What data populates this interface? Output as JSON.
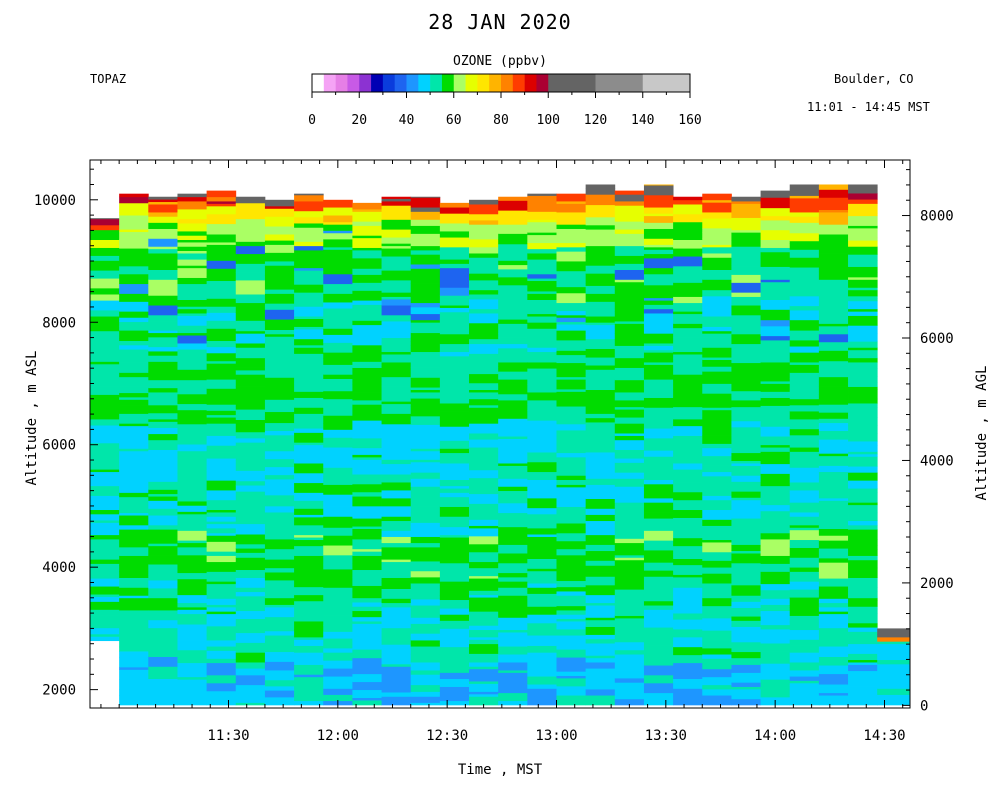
{
  "header": {
    "title": "28 JAN 2020",
    "station": "TOPAZ",
    "location": "Boulder, CO",
    "time_range": "11:01 - 14:45 MST"
  },
  "colorbar": {
    "title": "OZONE (ppbv)",
    "ticks": [
      0,
      20,
      40,
      60,
      80,
      100,
      120,
      140,
      160
    ],
    "bins": [
      {
        "from": 0,
        "to": 5,
        "color": "#ffffff"
      },
      {
        "from": 5,
        "to": 10,
        "color": "#f5a3f5"
      },
      {
        "from": 10,
        "to": 15,
        "color": "#e67fe6"
      },
      {
        "from": 15,
        "to": 20,
        "color": "#c85ae6"
      },
      {
        "from": 20,
        "to": 25,
        "color": "#8c32d2"
      },
      {
        "from": 25,
        "to": 30,
        "color": "#0000b4"
      },
      {
        "from": 30,
        "to": 35,
        "color": "#0a3cdc"
      },
      {
        "from": 35,
        "to": 40,
        "color": "#1e64f0"
      },
      {
        "from": 40,
        "to": 45,
        "color": "#1e96ff"
      },
      {
        "from": 45,
        "to": 50,
        "color": "#00d2ff"
      },
      {
        "from": 50,
        "to": 55,
        "color": "#00e6aa"
      },
      {
        "from": 55,
        "to": 60,
        "color": "#00dc00"
      },
      {
        "from": 60,
        "to": 65,
        "color": "#aaff64"
      },
      {
        "from": 65,
        "to": 70,
        "color": "#e6ff00"
      },
      {
        "from": 70,
        "to": 75,
        "color": "#ffe600"
      },
      {
        "from": 75,
        "to": 80,
        "color": "#ffb400"
      },
      {
        "from": 80,
        "to": 85,
        "color": "#ff8200"
      },
      {
        "from": 85,
        "to": 90,
        "color": "#ff3c00"
      },
      {
        "from": 90,
        "to": 95,
        "color": "#dc0000"
      },
      {
        "from": 95,
        "to": 100,
        "color": "#aa0032"
      },
      {
        "from": 100,
        "to": 120,
        "color": "#646464"
      },
      {
        "from": 120,
        "to": 140,
        "color": "#8c8c8c"
      },
      {
        "from": 140,
        "to": 160,
        "color": "#c8c8c8"
      }
    ]
  },
  "chart_data": {
    "type": "heatmap",
    "xlabel": "Time , MST",
    "ylabel_left": "Altitude , m ASL",
    "ylabel_right": "Altitude , m AGL",
    "x_ticks": [
      "11:30",
      "12:00",
      "12:30",
      "13:00",
      "13:30",
      "14:00",
      "14:30"
    ],
    "x_tick_minutes": [
      690,
      720,
      750,
      780,
      810,
      840,
      870
    ],
    "xlim_minutes": [
      652,
      877
    ],
    "y_ticks_left": [
      2000,
      4000,
      6000,
      8000,
      10000
    ],
    "ylim_left": [
      1700,
      10650
    ],
    "y_ticks_right": [
      0,
      2000,
      4000,
      6000,
      8000
    ],
    "surface_offset_m": 1743,
    "profiles": [
      {
        "start": 652,
        "end": 660,
        "top": 9700,
        "bottom": 2800
      },
      {
        "start": 660,
        "end": 668,
        "top": 10100,
        "bottom": 1750
      },
      {
        "start": 668,
        "end": 676,
        "top": 10050,
        "bottom": 1750
      },
      {
        "start": 676,
        "end": 684,
        "top": 10100,
        "bottom": 1750
      },
      {
        "start": 684,
        "end": 692,
        "top": 10150,
        "bottom": 1750
      },
      {
        "start": 692,
        "end": 700,
        "top": 10050,
        "bottom": 1750
      },
      {
        "start": 700,
        "end": 708,
        "top": 10000,
        "bottom": 1750
      },
      {
        "start": 708,
        "end": 716,
        "top": 10100,
        "bottom": 1750
      },
      {
        "start": 716,
        "end": 724,
        "top": 10000,
        "bottom": 1750
      },
      {
        "start": 724,
        "end": 732,
        "top": 9950,
        "bottom": 1750
      },
      {
        "start": 732,
        "end": 740,
        "top": 10050,
        "bottom": 1750
      },
      {
        "start": 740,
        "end": 748,
        "top": 10050,
        "bottom": 1750
      },
      {
        "start": 748,
        "end": 756,
        "top": 9950,
        "bottom": 1750
      },
      {
        "start": 756,
        "end": 764,
        "top": 10000,
        "bottom": 1750
      },
      {
        "start": 764,
        "end": 772,
        "top": 10050,
        "bottom": 1750
      },
      {
        "start": 772,
        "end": 780,
        "top": 10100,
        "bottom": 1750
      },
      {
        "start": 780,
        "end": 788,
        "top": 10100,
        "bottom": 1750
      },
      {
        "start": 788,
        "end": 796,
        "top": 10250,
        "bottom": 1750
      },
      {
        "start": 796,
        "end": 804,
        "top": 10150,
        "bottom": 1750
      },
      {
        "start": 804,
        "end": 812,
        "top": 10250,
        "bottom": 1750
      },
      {
        "start": 812,
        "end": 820,
        "top": 10050,
        "bottom": 1750
      },
      {
        "start": 820,
        "end": 828,
        "top": 10100,
        "bottom": 1750
      },
      {
        "start": 828,
        "end": 836,
        "top": 10050,
        "bottom": 1750
      },
      {
        "start": 836,
        "end": 844,
        "top": 10150,
        "bottom": 1750
      },
      {
        "start": 844,
        "end": 852,
        "top": 10250,
        "bottom": 1750
      },
      {
        "start": 852,
        "end": 860,
        "top": 10250,
        "bottom": 1750
      },
      {
        "start": 860,
        "end": 868,
        "top": 10250,
        "bottom": 1750
      },
      {
        "start": 868,
        "end": 877,
        "top": 3000,
        "bottom": 1750
      }
    ],
    "layers": [
      {
        "from": 1750,
        "to": 2400,
        "ppbv": 47
      },
      {
        "from": 2400,
        "to": 3200,
        "ppbv": 51
      },
      {
        "from": 3200,
        "to": 3700,
        "ppbv": 53
      },
      {
        "from": 3700,
        "to": 4500,
        "ppbv": 56
      },
      {
        "from": 4500,
        "to": 5300,
        "ppbv": 52
      },
      {
        "from": 5300,
        "to": 6300,
        "ppbv": 51
      },
      {
        "from": 6300,
        "to": 7400,
        "ppbv": 55
      },
      {
        "from": 7400,
        "to": 8300,
        "ppbv": 53
      },
      {
        "from": 8300,
        "to": 9200,
        "ppbv": 56
      },
      {
        "from": 9200,
        "to": 9600,
        "ppbv": 62
      },
      {
        "from": 9600,
        "to": 9800,
        "ppbv": 72
      },
      {
        "from": 9800,
        "to": 10300,
        "ppbv": 86
      }
    ]
  }
}
